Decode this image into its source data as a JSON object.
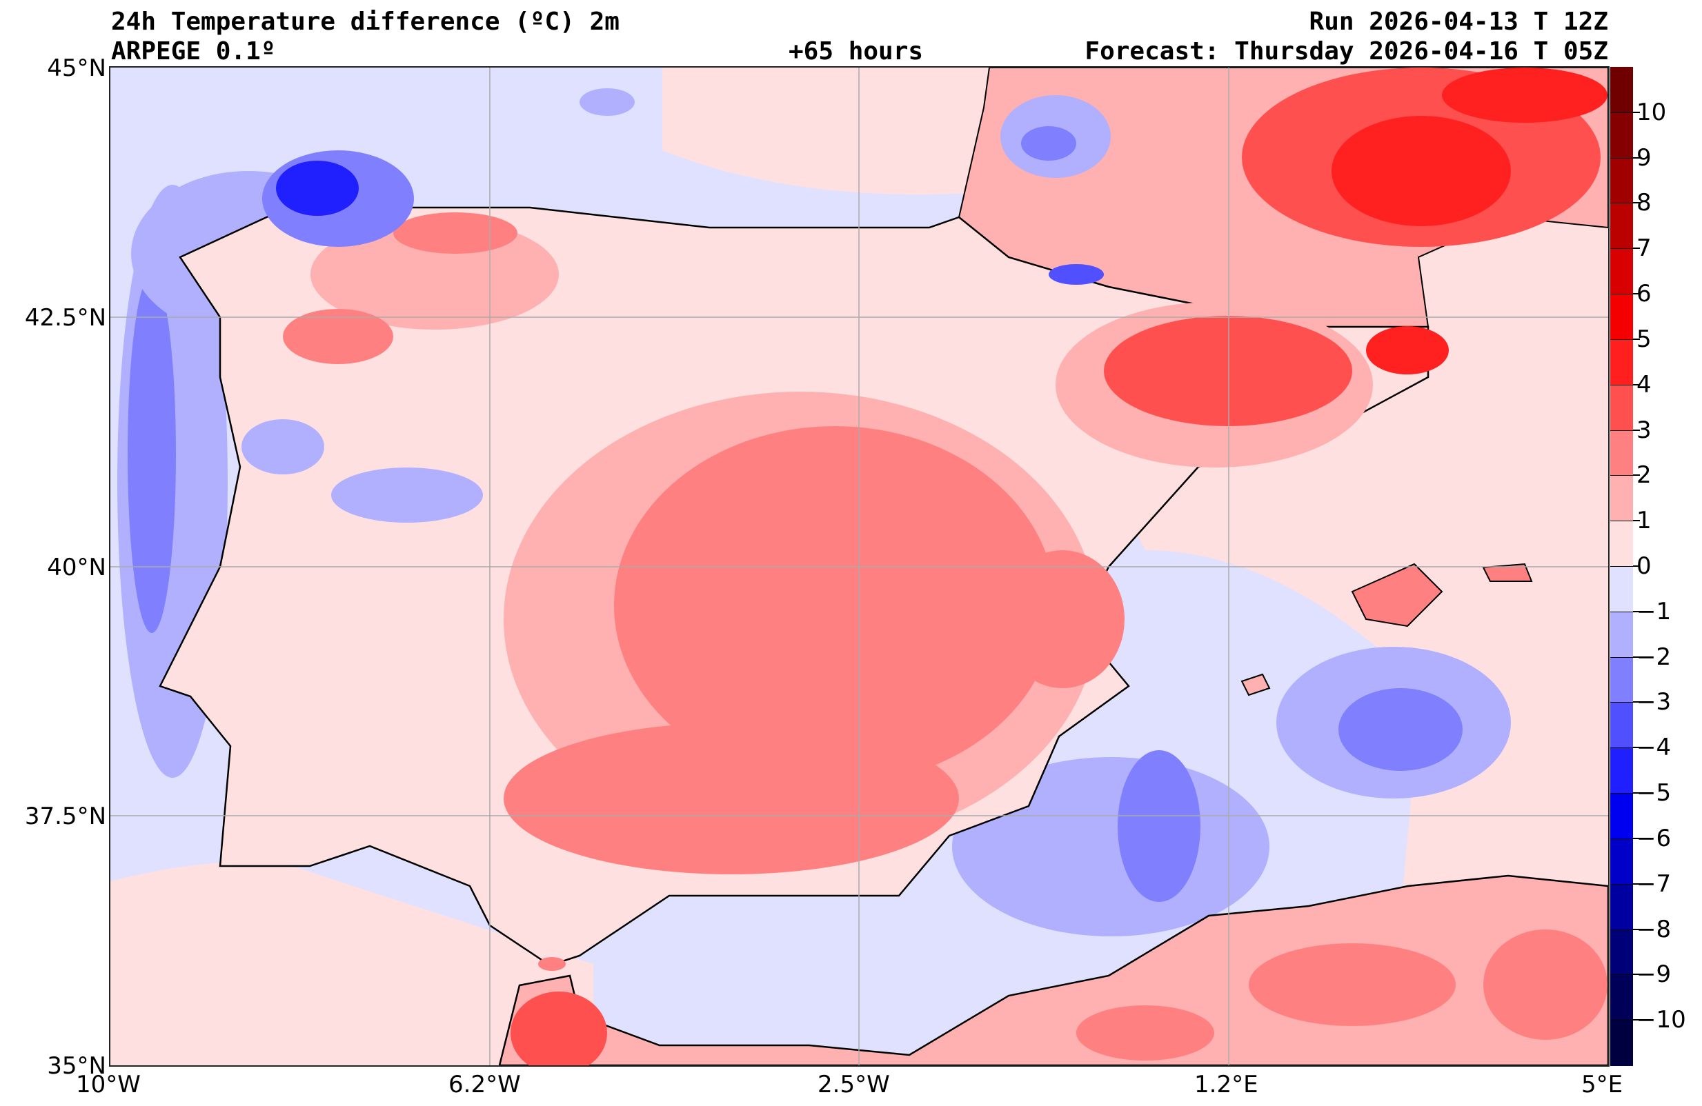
{
  "header": {
    "title": "24h Temperature difference (ºC) 2m",
    "model": "ARPEGE 0.1º",
    "lead_time": "+65 hours",
    "run": "Run 2026-04-13 T 12Z",
    "forecast": "Forecast: Thursday 2026-04-16 T 05Z"
  },
  "axes": {
    "lon_ticks": [
      "10°W",
      "6.2°W",
      "2.5°W",
      "1.2°E",
      "5°E"
    ],
    "lat_ticks": [
      "45°N",
      "42.5°N",
      "40°N",
      "37.5°N",
      "35°N"
    ],
    "lon_range": [
      -10,
      5
    ],
    "lat_range": [
      35,
      45
    ]
  },
  "colorbar": {
    "labels": [
      "10",
      "9",
      "8",
      "7",
      "6",
      "5",
      "4",
      "3",
      "2",
      "1",
      "0",
      "−1",
      "−2",
      "−3",
      "−4",
      "−5",
      "−6",
      "−7",
      "−8",
      "−9",
      "−10"
    ],
    "colors": [
      "#700000",
      "#850000",
      "#a00000",
      "#bb0000",
      "#d80000",
      "#f50000",
      "#ff1f1f",
      "#ff5050",
      "#ff8080",
      "#ffb0b0",
      "#ffe0e0",
      "#e0e0ff",
      "#b0b0ff",
      "#8080ff",
      "#5050ff",
      "#1f1fff",
      "#0000f0",
      "#0000c8",
      "#0000a0",
      "#000078",
      "#000058",
      "#000040"
    ]
  }
}
